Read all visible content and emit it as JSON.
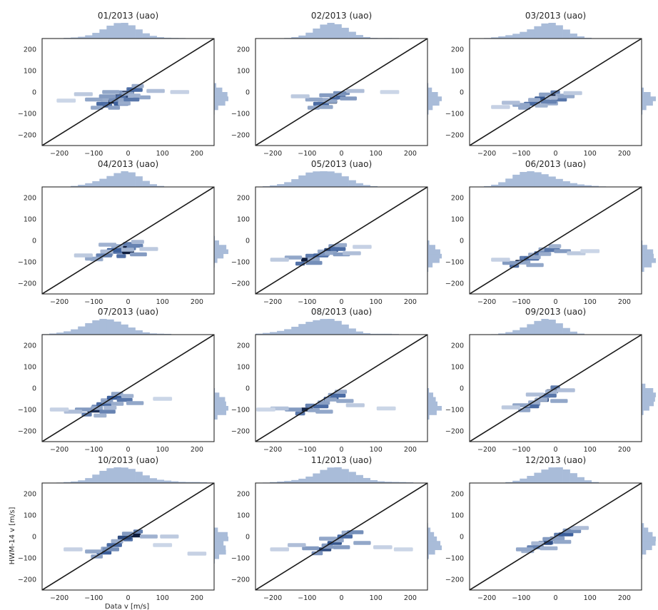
{
  "figure": {
    "xlabel": "Data v [m/s]",
    "ylabel": "HWM-14 v [m/s]"
  },
  "chart_data": [
    {
      "type": "heatmap",
      "title": "01/2013 (uao)",
      "xlim": [
        -250,
        250
      ],
      "ylim": [
        -250,
        250
      ],
      "xticks": [
        -200,
        -100,
        0,
        100,
        200
      ],
      "yticks": [
        -200,
        -100,
        0,
        100,
        200
      ],
      "points": [
        [
          -70,
          -55,
          0.55
        ],
        [
          -40,
          -45,
          0.95
        ],
        [
          -20,
          -20,
          0.75
        ],
        [
          0,
          -5,
          0.95
        ],
        [
          20,
          10,
          0.55
        ],
        [
          -100,
          -35,
          0.3
        ],
        [
          -60,
          -20,
          0.35
        ],
        [
          40,
          -25,
          0.3
        ],
        [
          -130,
          -10,
          0.15
        ],
        [
          80,
          5,
          0.2
        ],
        [
          -20,
          -55,
          0.6
        ],
        [
          10,
          -35,
          0.5
        ],
        [
          -50,
          0,
          0.3
        ],
        [
          150,
          0,
          0.12
        ],
        [
          -180,
          -40,
          0.1
        ]
      ]
    },
    {
      "type": "heatmap",
      "title": "02/2013 (uao)",
      "xlim": [
        -250,
        250
      ],
      "ylim": [
        -250,
        250
      ],
      "xticks": [
        -200,
        -100,
        0,
        100,
        200
      ],
      "yticks": [
        -200,
        -100,
        0,
        100,
        200
      ],
      "points": [
        [
          -30,
          -45,
          0.95
        ],
        [
          -60,
          -55,
          0.55
        ],
        [
          -10,
          -25,
          0.55
        ],
        [
          0,
          -5,
          0.4
        ],
        [
          -80,
          -35,
          0.3
        ],
        [
          20,
          -30,
          0.35
        ],
        [
          -40,
          -15,
          0.35
        ],
        [
          40,
          5,
          0.2
        ],
        [
          -120,
          -20,
          0.15
        ],
        [
          140,
          0,
          0.1
        ],
        [
          -50,
          -70,
          0.3
        ]
      ]
    },
    {
      "type": "heatmap",
      "title": "03/2013 (uao)",
      "xlim": [
        -250,
        250
      ],
      "ylim": [
        -250,
        250
      ],
      "xticks": [
        -200,
        -100,
        0,
        100,
        200
      ],
      "yticks": [
        -200,
        -100,
        0,
        100,
        200
      ],
      "points": [
        [
          -10,
          -20,
          0.95
        ],
        [
          -40,
          -30,
          0.65
        ],
        [
          -70,
          -55,
          0.55
        ],
        [
          10,
          -35,
          0.5
        ],
        [
          -100,
          -60,
          0.3
        ],
        [
          30,
          -20,
          0.3
        ],
        [
          -130,
          -50,
          0.2
        ],
        [
          50,
          -5,
          0.15
        ],
        [
          -160,
          -70,
          0.12
        ],
        [
          -20,
          -45,
          0.45
        ]
      ]
    },
    {
      "type": "heatmap",
      "title": "04/2013 (uao)",
      "xlim": [
        -250,
        250
      ],
      "ylim": [
        -250,
        250
      ],
      "xticks": [
        -200,
        -100,
        0,
        100,
        200
      ],
      "yticks": [
        -200,
        -100,
        0,
        100,
        200
      ],
      "points": [
        [
          -10,
          -35,
          0.95
        ],
        [
          0,
          -55,
          0.95
        ],
        [
          -40,
          -45,
          0.6
        ],
        [
          -70,
          -70,
          0.45
        ],
        [
          20,
          -25,
          0.45
        ],
        [
          -100,
          -85,
          0.3
        ],
        [
          30,
          -65,
          0.35
        ],
        [
          -130,
          -70,
          0.15
        ],
        [
          60,
          -40,
          0.15
        ],
        [
          -60,
          -20,
          0.25
        ]
      ]
    },
    {
      "type": "heatmap",
      "title": "05/2013 (uao)",
      "xlim": [
        -250,
        250
      ],
      "ylim": [
        -250,
        250
      ],
      "xticks": [
        -200,
        -100,
        0,
        100,
        200
      ],
      "yticks": [
        -200,
        -100,
        0,
        100,
        200
      ],
      "points": [
        [
          -100,
          -90,
          0.95
        ],
        [
          -60,
          -70,
          0.55
        ],
        [
          -30,
          -45,
          0.7
        ],
        [
          -10,
          -40,
          0.55
        ],
        [
          -140,
          -80,
          0.3
        ],
        [
          0,
          -65,
          0.35
        ],
        [
          30,
          -60,
          0.2
        ],
        [
          -180,
          -90,
          0.15
        ],
        [
          -80,
          -105,
          0.4
        ],
        [
          60,
          -30,
          0.12
        ]
      ]
    },
    {
      "type": "heatmap",
      "title": "06/2013 (uao)",
      "xlim": [
        -250,
        250
      ],
      "ylim": [
        -250,
        250
      ],
      "xticks": [
        -200,
        -100,
        0,
        100,
        200
      ],
      "yticks": [
        -200,
        -100,
        0,
        100,
        200
      ],
      "points": [
        [
          -100,
          -100,
          0.95
        ],
        [
          -70,
          -85,
          0.55
        ],
        [
          -40,
          -60,
          0.55
        ],
        [
          -10,
          -45,
          0.5
        ],
        [
          -130,
          -105,
          0.35
        ],
        [
          20,
          -50,
          0.35
        ],
        [
          -60,
          -115,
          0.3
        ],
        [
          60,
          -60,
          0.15
        ],
        [
          -160,
          -90,
          0.12
        ],
        [
          100,
          -50,
          0.1
        ]
      ]
    },
    {
      "type": "heatmap",
      "title": "07/2013 (uao)",
      "xlim": [
        -250,
        250
      ],
      "ylim": [
        -250,
        250
      ],
      "xticks": [
        -200,
        -100,
        0,
        100,
        200
      ],
      "yticks": [
        -200,
        -100,
        0,
        100,
        200
      ],
      "points": [
        [
          -100,
          -105,
          0.85
        ],
        [
          -70,
          -75,
          0.55
        ],
        [
          -40,
          -45,
          0.6
        ],
        [
          -10,
          -55,
          0.5
        ],
        [
          -130,
          -100,
          0.35
        ],
        [
          -160,
          -110,
          0.2
        ],
        [
          20,
          -70,
          0.3
        ],
        [
          -60,
          -110,
          0.45
        ],
        [
          -200,
          -100,
          0.12
        ],
        [
          100,
          -50,
          0.1
        ]
      ]
    },
    {
      "type": "heatmap",
      "title": "08/2013 (uao)",
      "xlim": [
        -250,
        250
      ],
      "ylim": [
        -250,
        250
      ],
      "xticks": [
        -200,
        -100,
        0,
        100,
        200
      ],
      "yticks": [
        -200,
        -100,
        0,
        100,
        200
      ],
      "points": [
        [
          -100,
          -100,
          0.9
        ],
        [
          -60,
          -85,
          0.55
        ],
        [
          -30,
          -50,
          0.6
        ],
        [
          -10,
          -35,
          0.55
        ],
        [
          -140,
          -100,
          0.35
        ],
        [
          -180,
          -95,
          0.18
        ],
        [
          10,
          -60,
          0.3
        ],
        [
          -50,
          -110,
          0.3
        ],
        [
          40,
          -80,
          0.15
        ],
        [
          130,
          -95,
          0.1
        ],
        [
          -220,
          -100,
          0.1
        ]
      ]
    },
    {
      "type": "heatmap",
      "title": "09/2013 (uao)",
      "xlim": [
        -250,
        250
      ],
      "ylim": [
        -250,
        250
      ],
      "xticks": [
        -200,
        -100,
        0,
        100,
        200
      ],
      "yticks": [
        -200,
        -100,
        0,
        100,
        200
      ],
      "points": [
        [
          -10,
          -15,
          0.95
        ],
        [
          -40,
          -55,
          0.7
        ],
        [
          -70,
          -85,
          0.55
        ],
        [
          -20,
          -35,
          0.5
        ],
        [
          -100,
          -80,
          0.3
        ],
        [
          10,
          -60,
          0.3
        ],
        [
          -130,
          -90,
          0.15
        ],
        [
          30,
          -10,
          0.2
        ],
        [
          -60,
          -30,
          0.2
        ]
      ]
    },
    {
      "type": "heatmap",
      "title": "10/2013 (uao)",
      "xlim": [
        -250,
        250
      ],
      "ylim": [
        -250,
        250
      ],
      "xticks": [
        -200,
        -100,
        0,
        100,
        200
      ],
      "yticks": [
        -200,
        -100,
        0,
        100,
        200
      ],
      "points": [
        [
          20,
          5,
          0.95
        ],
        [
          -10,
          -5,
          0.7
        ],
        [
          -40,
          -40,
          0.55
        ],
        [
          -70,
          -75,
          0.6
        ],
        [
          -50,
          -60,
          0.4
        ],
        [
          -100,
          -70,
          0.3
        ],
        [
          60,
          0,
          0.25
        ],
        [
          120,
          0,
          0.15
        ],
        [
          200,
          -80,
          0.12
        ],
        [
          -160,
          -60,
          0.12
        ],
        [
          100,
          -40,
          0.1
        ]
      ]
    },
    {
      "type": "heatmap",
      "title": "11/2013 (uao)",
      "xlim": [
        -250,
        250
      ],
      "ylim": [
        -250,
        250
      ],
      "xticks": [
        -200,
        -100,
        0,
        100,
        200
      ],
      "yticks": [
        -200,
        -100,
        0,
        100,
        200
      ],
      "points": [
        [
          -50,
          -60,
          0.7
        ],
        [
          -20,
          -30,
          0.65
        ],
        [
          10,
          0,
          0.55
        ],
        [
          40,
          20,
          0.4
        ],
        [
          -90,
          -55,
          0.35
        ],
        [
          60,
          -30,
          0.3
        ],
        [
          -130,
          -40,
          0.2
        ],
        [
          -180,
          -60,
          0.12
        ],
        [
          120,
          -50,
          0.12
        ],
        [
          180,
          -60,
          0.1
        ],
        [
          -40,
          -10,
          0.3
        ],
        [
          0,
          -50,
          0.35
        ]
      ]
    },
    {
      "type": "heatmap",
      "title": "12/2013 (uao)",
      "xlim": [
        -250,
        250
      ],
      "ylim": [
        -250,
        250
      ],
      "xticks": [
        -200,
        -100,
        0,
        100,
        200
      ],
      "yticks": [
        -200,
        -100,
        0,
        100,
        200
      ],
      "points": [
        [
          0,
          -10,
          0.95
        ],
        [
          -30,
          -30,
          0.7
        ],
        [
          30,
          10,
          0.6
        ],
        [
          -60,
          -50,
          0.45
        ],
        [
          -90,
          -60,
          0.3
        ],
        [
          50,
          25,
          0.4
        ],
        [
          70,
          40,
          0.2
        ],
        [
          -20,
          -55,
          0.25
        ],
        [
          20,
          -25,
          0.3
        ]
      ]
    }
  ]
}
